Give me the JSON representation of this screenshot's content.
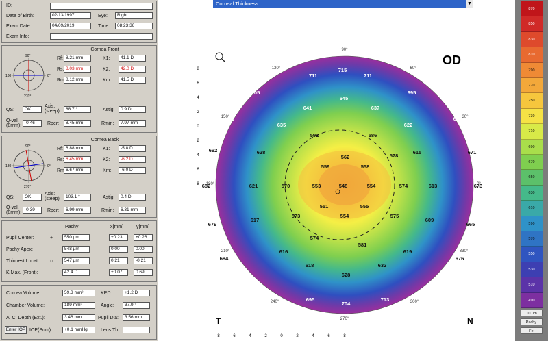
{
  "patient": {
    "id_label": "ID:",
    "dob_label": "Date of Birth:",
    "dob": "02/13/1997",
    "eye_label": "Eye:",
    "eye": "Right",
    "exam_date_label": "Exam Date:",
    "exam_date": "04/09/2019",
    "time_label": "Time:",
    "time": "08:23:36",
    "exam_info_label": "Exam Info:"
  },
  "front": {
    "title": "Cornea Front",
    "rf_label": "Rf:",
    "rf": "8.21 mm",
    "k1_label": "K1:",
    "k1": "41.1 D",
    "rs_label": "Rs:",
    "rs": "8.03 mm",
    "k2_label": "K2:",
    "k2": "42.0 D",
    "rm_label": "Rm:",
    "rm": "8.12 mm",
    "km_label": "Km:",
    "km": "41.5 D",
    "qs_label": "QS:",
    "qs": "OK",
    "axis_label": "Axis: (steep)",
    "axis": "88.7 °",
    "astig_label": "Astig:",
    "astig": "0.9 D",
    "qval_label": "Q-val. (8mm):",
    "qval": "-0.46",
    "rper_label": "Rper:",
    "rper": "8.45 mm",
    "rmin_label": "Rmin:",
    "rmin": "7.97 mm"
  },
  "back": {
    "title": "Cornea Back",
    "rf_label": "Rf:",
    "rf": "6.88 mm",
    "k1_label": "K1:",
    "k1": "-5.8 D",
    "rs_label": "Rs:",
    "rs": "6.45 mm",
    "k2_label": "K2:",
    "k2": "-6.2 D",
    "rm_label": "Rm:",
    "rm": "6.67 mm",
    "km_label": "Km:",
    "km": "-6.0 D",
    "qs_label": "QS:",
    "qs": "OK",
    "axis_label": "Axis: (steep)",
    "axis": "103.1 °",
    "astig_label": "Astig:",
    "astig": "0.4 D",
    "qval_label": "Q-val. (8mm):",
    "qval": "-0.39",
    "rper_label": "Rper:",
    "rper": "6.99 mm",
    "rmin_label": "Rmin:",
    "rmin": "6.31 mm"
  },
  "pachy": {
    "col_pachy": "Pachy:",
    "col_x": "x[mm]",
    "col_y": "y[mm]",
    "rows": [
      {
        "label": "Pupil Center:",
        "marker": "+",
        "pachy": "550 µm",
        "x": "+0.23",
        "y": "+0.26"
      },
      {
        "label": "Pachy Apex:",
        "marker": "",
        "pachy": "548 µm",
        "x": "0.00",
        "y": "0.00"
      },
      {
        "label": "Thinnest Locat.:",
        "marker": "○",
        "pachy": "547 µm",
        "x": "0.21",
        "y": "-0.21"
      },
      {
        "label": "K Max. (Front):",
        "marker": "",
        "pachy": "42.4 D",
        "x": "+0.07",
        "y": "0.69"
      }
    ]
  },
  "bottom": {
    "cv_label": "Cornea Volume:",
    "cv": "59.3 mm³",
    "kpd_label": "KPD:",
    "kpd": "+1.2 D",
    "chv_label": "Chamber Volume:",
    "chv": "189 mm³",
    "angle_label": "Angle:",
    "angle": "37.9 °",
    "acd_label": "A. C. Depth (Ext.):",
    "acd": "3.46 mm",
    "pdia_label": "Pupil Dia:",
    "pdia": "3.56 mm",
    "iop_btn": "Enter IOP",
    "iop_label": "IOP(Sum):",
    "iop": "+0.1 mmHg",
    "lens_label": "Lens Th.:"
  },
  "map": {
    "selector": "Corneal Thickness",
    "eye_label": "OD",
    "t_label": "T",
    "n_label": "N",
    "axis_ticks_x": [
      "8",
      "6",
      "4",
      "2",
      "0",
      "2",
      "4",
      "6",
      "8"
    ],
    "axis_ticks_y": [
      "8",
      "6",
      "4",
      "2",
      "0",
      "2",
      "4",
      "6",
      "8"
    ],
    "angle_labels": [
      "90°",
      "60°",
      "30°",
      "0°",
      "330°",
      "300°",
      "270°",
      "240°",
      "210°",
      "180°",
      "150°",
      "120°"
    ],
    "values": [
      {
        "v": "715",
        "pos": "1"
      },
      {
        "v": "711",
        "pos": "2"
      },
      {
        "v": "711",
        "pos": "3"
      },
      {
        "v": "705",
        "pos": "4"
      },
      {
        "v": "645",
        "pos": "5"
      },
      {
        "v": "695",
        "pos": "6"
      },
      {
        "v": "641",
        "pos": "7"
      },
      {
        "v": "637",
        "pos": "8"
      },
      {
        "v": "700",
        "pos": "9"
      },
      {
        "v": "635",
        "pos": "10"
      },
      {
        "v": "622",
        "pos": "11"
      },
      {
        "v": "677",
        "pos": "12"
      },
      {
        "v": "592",
        "pos": "13"
      },
      {
        "v": "586",
        "pos": "14"
      },
      {
        "v": "692",
        "pos": "15"
      },
      {
        "v": "628",
        "pos": "16"
      },
      {
        "v": "562",
        "pos": "17"
      },
      {
        "v": "578",
        "pos": "18"
      },
      {
        "v": "615",
        "pos": "19"
      },
      {
        "v": "671",
        "pos": "20"
      },
      {
        "v": "559",
        "pos": "21"
      },
      {
        "v": "558",
        "pos": "22"
      },
      {
        "v": "682",
        "pos": "23"
      },
      {
        "v": "621",
        "pos": "24"
      },
      {
        "v": "570",
        "pos": "25"
      },
      {
        "v": "553",
        "pos": "26"
      },
      {
        "v": "548",
        "pos": "27"
      },
      {
        "v": "554",
        "pos": "28"
      },
      {
        "v": "574",
        "pos": "29"
      },
      {
        "v": "613",
        "pos": "30"
      },
      {
        "v": "673",
        "pos": "31"
      },
      {
        "v": "551",
        "pos": "32"
      },
      {
        "v": "555",
        "pos": "33"
      },
      {
        "v": "573",
        "pos": "34"
      },
      {
        "v": "554",
        "pos": "35"
      },
      {
        "v": "575",
        "pos": "36"
      },
      {
        "v": "679",
        "pos": "37"
      },
      {
        "v": "617",
        "pos": "38"
      },
      {
        "v": "609",
        "pos": "39"
      },
      {
        "v": "665",
        "pos": "40"
      },
      {
        "v": "574",
        "pos": "41"
      },
      {
        "v": "581",
        "pos": "42"
      },
      {
        "v": "616",
        "pos": "43"
      },
      {
        "v": "619",
        "pos": "44"
      },
      {
        "v": "684",
        "pos": "45"
      },
      {
        "v": "676",
        "pos": "46"
      },
      {
        "v": "618",
        "pos": "47"
      },
      {
        "v": "632",
        "pos": "48"
      },
      {
        "v": "628",
        "pos": "49"
      },
      {
        "v": "689",
        "pos": "50"
      },
      {
        "v": "701",
        "pos": "51"
      },
      {
        "v": "695",
        "pos": "52"
      },
      {
        "v": "704",
        "pos": "53"
      },
      {
        "v": "713",
        "pos": "54"
      }
    ]
  },
  "scale": {
    "values": [
      "870",
      "840",
      "810",
      "780",
      "750",
      "720",
      "690",
      "660",
      "630",
      "600",
      "570",
      "540",
      "510",
      "480",
      "450",
      "420",
      "390",
      "360",
      "330",
      "300"
    ],
    "labels_top": [
      "870",
      "850",
      "830",
      "810",
      "790",
      "770",
      "750",
      "730",
      "710",
      "690",
      "670",
      "650",
      "630",
      "610",
      "590",
      "570",
      "550",
      "530",
      "510",
      "490"
    ],
    "step": "10 µm",
    "btn1": "Pachy.",
    "btn2": "Fel"
  }
}
